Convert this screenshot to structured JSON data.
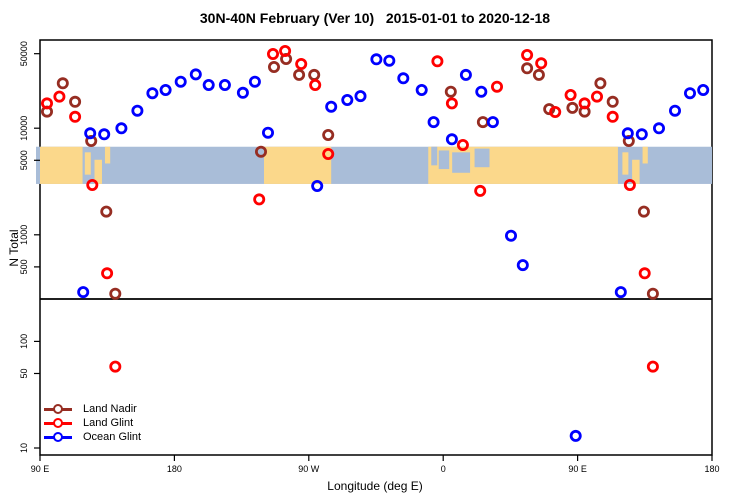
{
  "title": "30N-40N February (Ver 10)   2015-01-01 to 2020-12-18",
  "chart_data": {
    "type": "scatter",
    "title": "30N-40N February (Ver 10)   2015-01-01 to 2020-12-18",
    "xlabel": "Longitude (deg E)",
    "ylabel": "N Total",
    "y_scale": "log",
    "x_axis": {
      "range_deg_continuous": [
        90,
        540
      ],
      "ticks": [
        {
          "value": 90,
          "label": "90 E"
        },
        {
          "value": 180,
          "label": "180"
        },
        {
          "value": 270,
          "label": "90 W"
        },
        {
          "value": 360,
          "label": "0"
        },
        {
          "value": 450,
          "label": "90 E"
        },
        {
          "value": 540,
          "label": "180"
        }
      ]
    },
    "y_axis": {
      "range": [
        9,
        67000
      ],
      "ticks": [
        {
          "value": 50000,
          "label": "50000"
        },
        {
          "value": 10000,
          "label": "10000"
        },
        {
          "value": 5000,
          "label": "5000"
        },
        {
          "value": 1000,
          "label": "1000"
        },
        {
          "value": 500,
          "label": "500"
        },
        {
          "value": 100,
          "label": "100"
        },
        {
          "value": 50,
          "label": "50"
        },
        {
          "value": 10,
          "label": "10"
        }
      ]
    },
    "reference_line_value": 250,
    "colors": {
      "land_nadir": "#962D22",
      "land_glint": "#FF0000",
      "ocean_glint": "#0000FF",
      "map_land": "#FBD88B",
      "map_ocean": "#A9BDD8",
      "axis": "#000000"
    },
    "map_band": {
      "top_value": 6700,
      "bottom_value": 3000,
      "land_segments": [
        {
          "from": 90,
          "to": 118.5
        },
        {
          "from": 240,
          "to": 285
        },
        {
          "from": 350,
          "to": 477
        }
      ],
      "island_patches": [
        {
          "from": 120,
          "to": 124,
          "top": 0.15,
          "bottom": 0.75
        },
        {
          "from": 126.5,
          "to": 131.5,
          "top": 0.35,
          "bottom": 1.0
        },
        {
          "from": 133.5,
          "to": 137,
          "top": 0.0,
          "bottom": 0.45
        },
        {
          "from": 480,
          "to": 484,
          "top": 0.15,
          "bottom": 0.75
        },
        {
          "from": 486.5,
          "to": 491.5,
          "top": 0.35,
          "bottom": 1.0
        },
        {
          "from": 493.5,
          "to": 497,
          "top": 0.0,
          "bottom": 0.45
        }
      ],
      "sea_patches": [
        {
          "from": 352,
          "to": 356,
          "top": 0.0,
          "bottom": 0.5
        },
        {
          "from": 357,
          "to": 364,
          "top": 0.1,
          "bottom": 0.6
        },
        {
          "from": 366,
          "to": 378,
          "top": 0.15,
          "bottom": 0.7
        },
        {
          "from": 381,
          "to": 391,
          "top": 0.05,
          "bottom": 0.55
        }
      ]
    },
    "series": [
      {
        "id": "land-nadir",
        "name": "Land Nadir",
        "color": "#962D22",
        "points": [
          [
            105.3,
            26400
          ],
          [
            113.5,
            17700
          ],
          [
            94.7,
            14300
          ],
          [
            124.3,
            7580
          ],
          [
            134.4,
            1650
          ],
          [
            140.4,
            280
          ],
          [
            238,
            6020
          ],
          [
            246.7,
            37500
          ],
          [
            254.8,
            44600
          ],
          [
            263.5,
            31600
          ],
          [
            273.6,
            31600
          ],
          [
            283,
            8630
          ],
          [
            365.1,
            22000
          ],
          [
            386.6,
            11400
          ],
          [
            416.2,
            36500
          ],
          [
            424.1,
            31600
          ],
          [
            431,
            15100
          ],
          [
            446.5,
            15500
          ],
          [
            454.7,
            14300
          ],
          [
            465.3,
            26400
          ],
          [
            473.5,
            17700
          ],
          [
            484.3,
            7580
          ],
          [
            494.4,
            1650
          ],
          [
            500.4,
            280
          ]
        ]
      },
      {
        "id": "land-glint",
        "name": "Land Glint",
        "color": "#FF0000",
        "points": [
          [
            94.7,
            17100
          ],
          [
            103,
            19800
          ],
          [
            113.5,
            12800
          ],
          [
            125,
            2930
          ],
          [
            134.9,
            435
          ],
          [
            140.4,
            58
          ],
          [
            236.8,
            2150
          ],
          [
            246,
            49700
          ],
          [
            254.1,
            53000
          ],
          [
            264.9,
            40000
          ],
          [
            274.3,
            25400
          ],
          [
            283,
            5730
          ],
          [
            356.1,
            42400
          ],
          [
            365.8,
            17100
          ],
          [
            373.2,
            6960
          ],
          [
            384.8,
            2580
          ],
          [
            396,
            24500
          ],
          [
            416.2,
            48600
          ],
          [
            425.6,
            40600
          ],
          [
            435,
            14200
          ],
          [
            445.3,
            20500
          ],
          [
            454.7,
            17100
          ],
          [
            463,
            19800
          ],
          [
            473.5,
            12800
          ],
          [
            485,
            2930
          ],
          [
            494.9,
            435
          ],
          [
            500.4,
            58
          ]
        ]
      },
      {
        "id": "ocean-glint",
        "name": "Ocean Glint",
        "color": "#0000FF",
        "points": [
          [
            118.9,
            290
          ],
          [
            123.6,
            8960
          ],
          [
            133,
            8760
          ],
          [
            144.5,
            9980
          ],
          [
            155.2,
            14600
          ],
          [
            165.3,
            21300
          ],
          [
            174.1,
            22800
          ],
          [
            184.2,
            27300
          ],
          [
            194.3,
            32000
          ],
          [
            203,
            25400
          ],
          [
            213.8,
            25400
          ],
          [
            225.9,
            21500
          ],
          [
            233.9,
            27300
          ],
          [
            242.7,
            9070
          ],
          [
            275.6,
            2870
          ],
          [
            285,
            15900
          ],
          [
            295.8,
            18400
          ],
          [
            304.6,
            20000
          ],
          [
            315.3,
            44300
          ],
          [
            323.9,
            43000
          ],
          [
            333.3,
            29400
          ],
          [
            345.6,
            22800
          ],
          [
            353.6,
            11400
          ],
          [
            365.8,
            7870
          ],
          [
            375.2,
            31600
          ],
          [
            385.5,
            22000
          ],
          [
            393.3,
            11400
          ],
          [
            405.4,
            980
          ],
          [
            413.3,
            520
          ],
          [
            448.7,
            13
          ],
          [
            478.9,
            290
          ],
          [
            483.6,
            8960
          ],
          [
            493,
            8760
          ],
          [
            504.5,
            9980
          ],
          [
            515.2,
            14600
          ],
          [
            525.3,
            21300
          ],
          [
            534.1,
            22800
          ]
        ]
      }
    ],
    "legend": {
      "position": "bottom-left",
      "entries": [
        "Land Nadir",
        "Land Glint",
        "Ocean Glint"
      ]
    }
  },
  "x_axis_label": "Longitude (deg E)",
  "y_axis_label": "N Total"
}
